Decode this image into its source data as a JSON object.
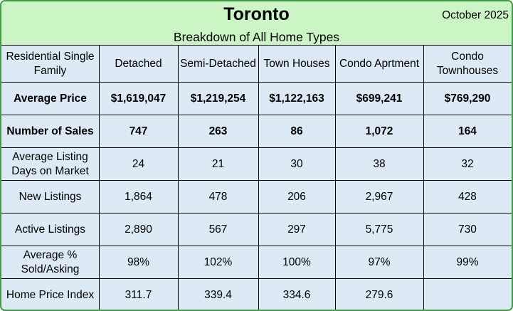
{
  "header": {
    "title": "Toronto",
    "subtitle": "Breakdown of All Home Types",
    "date": "October 2025"
  },
  "colors": {
    "header_bg": "#ccf5c6",
    "table_bg": "#dde9f5",
    "border": "#3f9a43"
  },
  "chart_data": {
    "type": "table",
    "title": "Toronto",
    "subtitle": "Breakdown of All Home Types",
    "columns": [
      "Residential Single Family",
      "Detached",
      "Semi-Detached",
      "Town Houses",
      "Condo Aprtment",
      "Condo Townhouses"
    ],
    "rows": [
      {
        "label": "Average Price",
        "bold": true,
        "values": [
          "$1,619,047",
          "$1,219,254",
          "$1,122,163",
          "$699,241",
          "$769,290"
        ]
      },
      {
        "label": "Number of Sales",
        "bold": true,
        "values": [
          "747",
          "263",
          "86",
          "1,072",
          "164"
        ]
      },
      {
        "label": "Average Listing Days on Market",
        "bold": false,
        "values": [
          "24",
          "21",
          "30",
          "38",
          "32"
        ]
      },
      {
        "label": "New Listings",
        "bold": false,
        "values": [
          "1,864",
          "478",
          "206",
          "2,967",
          "428"
        ]
      },
      {
        "label": "Active Listings",
        "bold": false,
        "values": [
          "2,890",
          "567",
          "297",
          "5,775",
          "730"
        ]
      },
      {
        "label": "Average % Sold/Asking",
        "bold": false,
        "values": [
          "98%",
          "102%",
          "100%",
          "97%",
          "99%"
        ]
      },
      {
        "label": "Home Price Index",
        "bold": false,
        "values": [
          "311.7",
          "339.4",
          "334.6",
          "279.6",
          ""
        ]
      }
    ]
  }
}
